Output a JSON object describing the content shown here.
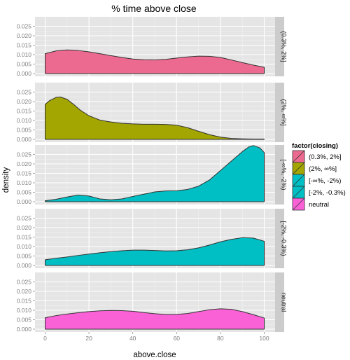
{
  "chart_data": {
    "type": "area",
    "title": "% time above close",
    "xlabel": "above.close",
    "ylabel": "density",
    "xlim": [
      0,
      100
    ],
    "ylim": [
      0,
      0.03
    ],
    "x_ticks": [
      0,
      20,
      40,
      60,
      80,
      100
    ],
    "x_tick_labels": [
      "0",
      "20",
      "40",
      "60",
      "80",
      "100"
    ],
    "y_ticks": [
      0,
      0.005,
      0.01,
      0.015,
      0.02,
      0.025
    ],
    "y_tick_labels": [
      "0.000",
      "0.005",
      "0.010",
      "0.015",
      "0.020",
      "0.025"
    ],
    "grid": true,
    "legend": {
      "title": "factor(closing)",
      "position": "right",
      "entries": [
        "(0.3%, 2%]",
        "(2%, ∞%]",
        "[-∞%, -2%)",
        "[-2%, -0.3%)",
        "neutral"
      ]
    },
    "facets": [
      {
        "label": "(0.3%, 2%]",
        "color": "#ec6a8f",
        "x": [
          0,
          5,
          10,
          15,
          20,
          25,
          30,
          35,
          40,
          45,
          50,
          55,
          60,
          65,
          70,
          75,
          80,
          85,
          90,
          95,
          100
        ],
        "y": [
          0.0105,
          0.012,
          0.0125,
          0.0122,
          0.0115,
          0.0105,
          0.0095,
          0.0085,
          0.0077,
          0.0073,
          0.0072,
          0.0075,
          0.0082,
          0.0088,
          0.0092,
          0.0091,
          0.0085,
          0.0072,
          0.0058,
          0.0045,
          0.0033
        ]
      },
      {
        "label": "(2%, ∞%]",
        "color": "#a3a500",
        "x": [
          0,
          2,
          5,
          7,
          10,
          13,
          16,
          20,
          25,
          30,
          35,
          40,
          45,
          50,
          55,
          60,
          65,
          70,
          75,
          80,
          85,
          90,
          95,
          100
        ],
        "y": [
          0.0185,
          0.0205,
          0.0222,
          0.0224,
          0.0212,
          0.0185,
          0.0155,
          0.0125,
          0.0102,
          0.0092,
          0.0085,
          0.0082,
          0.008,
          0.008,
          0.0079,
          0.0075,
          0.0062,
          0.0043,
          0.0025,
          0.0012,
          0.0005,
          0.0003,
          0.0002,
          0.0002
        ]
      },
      {
        "label": "[-∞%, -2%)",
        "color": "#00bfc4",
        "x": [
          0,
          5,
          10,
          15,
          20,
          25,
          30,
          35,
          40,
          45,
          50,
          55,
          60,
          65,
          70,
          75,
          80,
          85,
          90,
          93,
          95,
          98,
          100
        ],
        "y": [
          0.0005,
          0.0013,
          0.0025,
          0.0035,
          0.003,
          0.0015,
          0.001,
          0.0015,
          0.0028,
          0.004,
          0.0052,
          0.0057,
          0.0058,
          0.0065,
          0.0082,
          0.0115,
          0.0165,
          0.0215,
          0.0265,
          0.029,
          0.0297,
          0.0285,
          0.026
        ]
      },
      {
        "label": "[-2%, -0.3%)",
        "color": "#00bfc4",
        "x": [
          0,
          5,
          10,
          15,
          20,
          25,
          30,
          35,
          40,
          45,
          50,
          55,
          60,
          65,
          70,
          75,
          80,
          85,
          90,
          95,
          100
        ],
        "y": [
          0.003,
          0.0038,
          0.0045,
          0.0053,
          0.006,
          0.0067,
          0.0073,
          0.0078,
          0.0081,
          0.0081,
          0.0079,
          0.0077,
          0.0078,
          0.0083,
          0.0093,
          0.0108,
          0.0125,
          0.0138,
          0.0147,
          0.0145,
          0.0128
        ]
      },
      {
        "label": "neutral",
        "color": "#fb61d7",
        "x": [
          0,
          5,
          10,
          15,
          20,
          25,
          30,
          35,
          40,
          45,
          50,
          55,
          60,
          65,
          70,
          75,
          80,
          85,
          90,
          95,
          100
        ],
        "y": [
          0.006,
          0.0072,
          0.008,
          0.0087,
          0.0093,
          0.0097,
          0.0099,
          0.0098,
          0.0095,
          0.0088,
          0.0082,
          0.0078,
          0.0078,
          0.0083,
          0.0093,
          0.0103,
          0.0108,
          0.0105,
          0.0093,
          0.0077,
          0.0059
        ]
      }
    ]
  }
}
